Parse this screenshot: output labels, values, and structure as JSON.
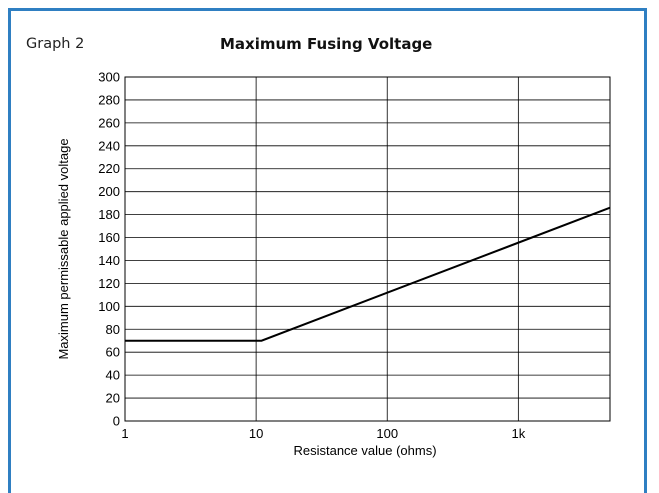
{
  "graph_label": "Graph 2",
  "chart_data": {
    "type": "line",
    "title": "Maximum Fusing Voltage",
    "xlabel": "Resistance value (ohms)",
    "ylabel": "Maximum permissable applied voltage",
    "x_scale": "log",
    "xlim": [
      1,
      5000
    ],
    "ylim": [
      0,
      300
    ],
    "x_ticks": [
      {
        "value": 1,
        "label": "1"
      },
      {
        "value": 10,
        "label": "10"
      },
      {
        "value": 100,
        "label": "100"
      },
      {
        "value": 1000,
        "label": "1k"
      }
    ],
    "y_ticks": [
      0,
      20,
      40,
      60,
      80,
      100,
      120,
      140,
      160,
      180,
      200,
      220,
      240,
      260,
      280,
      300
    ],
    "grid": true,
    "series": [
      {
        "color": "#000000",
        "points": [
          {
            "x": 1,
            "y": 70
          },
          {
            "x": 11,
            "y": 70
          },
          {
            "x": 5000,
            "y": 186
          }
        ]
      }
    ]
  }
}
